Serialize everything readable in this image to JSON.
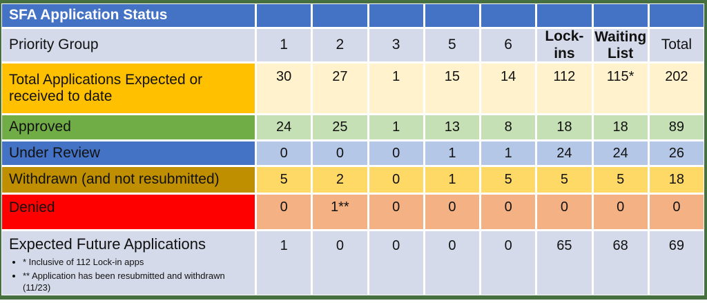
{
  "table": {
    "title": "SFA Application Status",
    "priority_group_label": "Priority Group",
    "columns": [
      "1",
      "2",
      "3",
      "5",
      "6",
      "Lock-ins",
      "Waiting List",
      "Total"
    ],
    "rows": [
      {
        "label": "Total Applications Expected or received to date",
        "values": [
          "30",
          "27",
          "1",
          "15",
          "14",
          "112",
          "115*",
          "202"
        ]
      },
      {
        "label": "Approved",
        "values": [
          "24",
          "25",
          "1",
          "13",
          "8",
          "18",
          "18",
          "89"
        ]
      },
      {
        "label": "Under Review",
        "values": [
          "0",
          "0",
          "0",
          "1",
          "1",
          "24",
          "24",
          "26"
        ]
      },
      {
        "label": "Withdrawn (and not resubmitted)",
        "values": [
          "5",
          "2",
          "0",
          "1",
          "5",
          "5",
          "5",
          "18"
        ]
      },
      {
        "label": "Denied",
        "values": [
          "0",
          "1**",
          "0",
          "0",
          "0",
          "0",
          "0",
          "0"
        ]
      },
      {
        "label": "Expected Future Applications",
        "footnotes": [
          "* Inclusive of 112 Lock-in apps",
          "** Application has been resubmitted and withdrawn (11/23)"
        ],
        "values": [
          "1",
          "0",
          "0",
          "0",
          "0",
          "65",
          "68",
          "69"
        ]
      }
    ],
    "colors": {
      "outer_border": "#46703f",
      "header_blue": "#4472c4",
      "lavender": "#d5daea",
      "orange_label": "#ffc000",
      "cream_values": "#fff2cc",
      "green_label": "#70ad47",
      "light_green_values": "#c5e0b4",
      "light_blue_values": "#b4c7e7",
      "dark_gold_label": "#bf8f00",
      "gold_values": "#ffd966",
      "red_label": "#ff0000",
      "peach_values": "#f4b183"
    }
  }
}
